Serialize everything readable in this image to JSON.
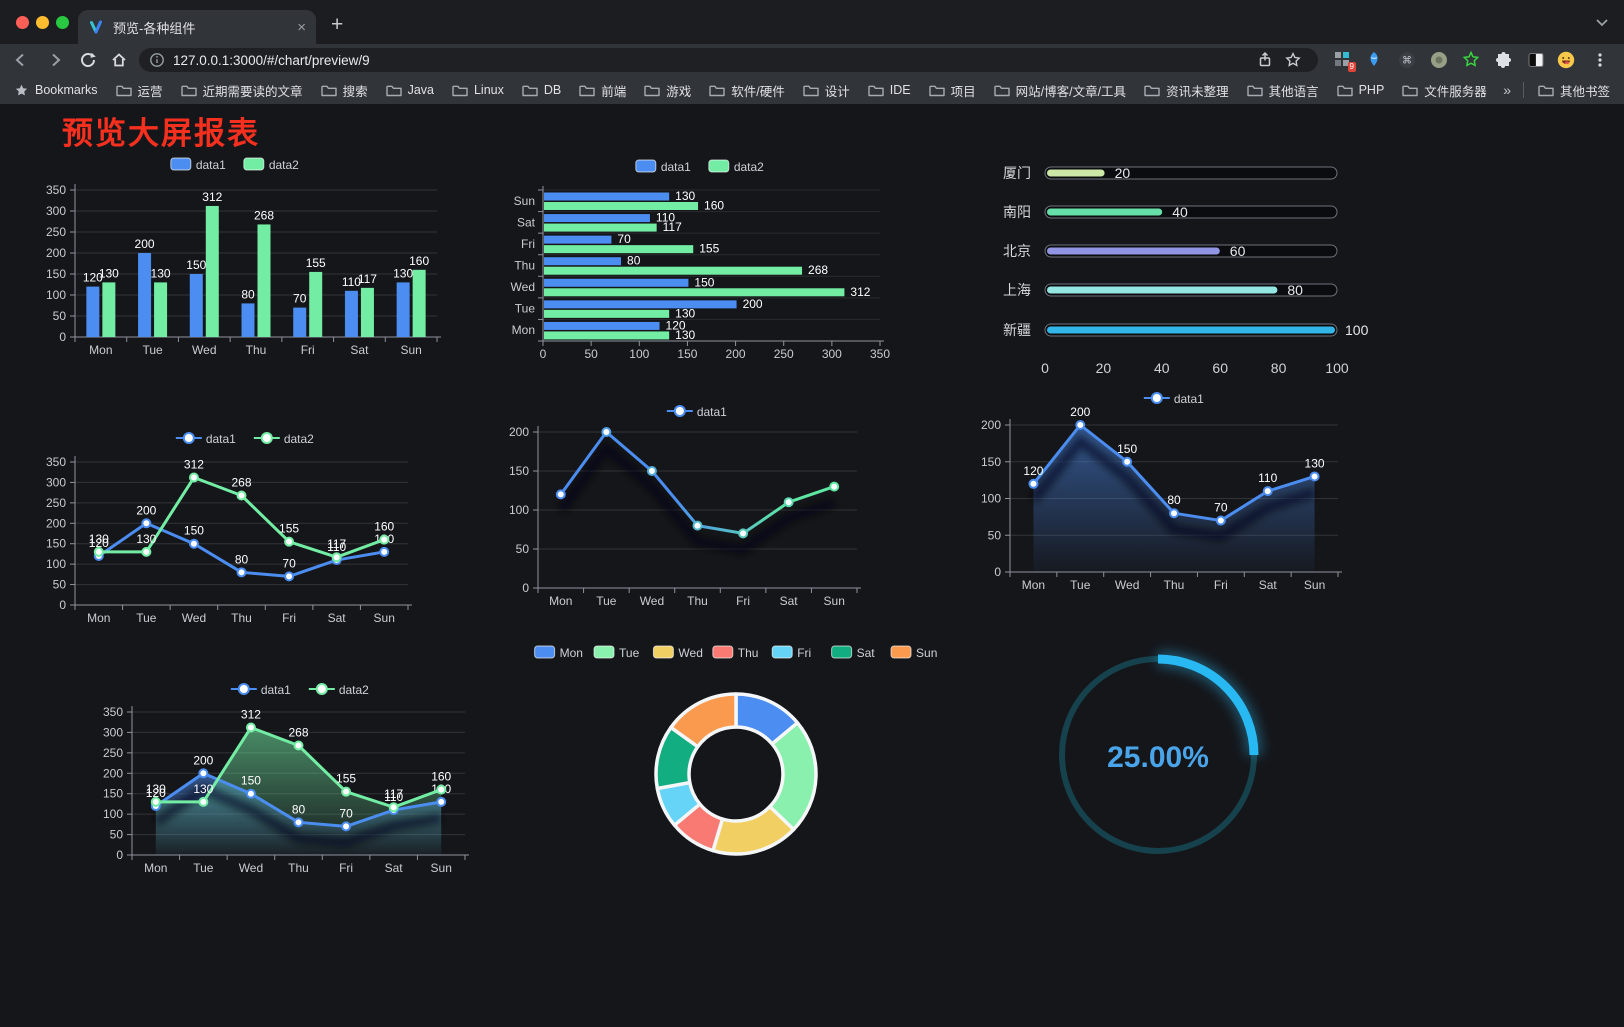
{
  "browser": {
    "tab": {
      "title": "预览-各种组件",
      "close": "×"
    },
    "new_tab_button": "+",
    "url": "127.0.0.1:3000/#/chart/preview/9",
    "bookmarks_bar": {
      "root_label": "Bookmarks",
      "folders": [
        "运营",
        "近期需要读的文章",
        "搜索",
        "Java",
        "Linux",
        "DB",
        "前端",
        "游戏",
        "软件/硬件",
        "设计",
        "IDE",
        "项目",
        "网站/博客/文章/工具",
        "资讯未整理",
        "其他语言",
        "PHP",
        "文件服务器"
      ],
      "overflow": "»",
      "other_bookmarks": "其他书签"
    },
    "extensions_badge": "9"
  },
  "page": {
    "title": "预览大屏报表",
    "title_color": "#f6301f"
  },
  "chart_data": [
    {
      "id": "bar-vertical",
      "type": "bar",
      "categories": [
        "Mon",
        "Tue",
        "Wed",
        "Thu",
        "Fri",
        "Sat",
        "Sun"
      ],
      "series": [
        {
          "name": "data1",
          "color": "#4b8df0",
          "values": [
            120,
            200,
            150,
            80,
            70,
            110,
            130
          ]
        },
        {
          "name": "data2",
          "color": "#73eda4",
          "values": [
            130,
            130,
            312,
            268,
            155,
            117,
            160
          ]
        }
      ],
      "ylim": [
        0,
        350
      ],
      "ystep": 50,
      "grid": true,
      "legend_position": "top"
    },
    {
      "id": "bar-horizontal",
      "type": "bar-horizontal",
      "categories": [
        "Mon",
        "Tue",
        "Wed",
        "Thu",
        "Fri",
        "Sat",
        "Sun"
      ],
      "series": [
        {
          "name": "data1",
          "color": "#4b8df0",
          "values": [
            120,
            200,
            150,
            80,
            70,
            110,
            130
          ]
        },
        {
          "name": "data2",
          "color": "#73eda4",
          "values": [
            130,
            130,
            312,
            268,
            155,
            117,
            160
          ]
        }
      ],
      "xlim": [
        0,
        350
      ],
      "xstep": 50,
      "grid": true,
      "legend_position": "top",
      "category_order_displayed": [
        "Sun",
        "Sat",
        "Fri",
        "Thu",
        "Wed",
        "Tue",
        "Mon"
      ]
    },
    {
      "id": "progress-bars",
      "type": "progress",
      "max": 100,
      "axis_ticks": [
        0,
        20,
        40,
        60,
        80,
        100
      ],
      "items": [
        {
          "label": "厦门",
          "value": 20,
          "color": "#cde8a6"
        },
        {
          "label": "南阳",
          "value": 40,
          "color": "#66dfa9"
        },
        {
          "label": "北京",
          "value": 60,
          "color": "#9295e3"
        },
        {
          "label": "上海",
          "value": 80,
          "color": "#93e6e2"
        },
        {
          "label": "新疆",
          "value": 100,
          "color": "#33b6e8"
        }
      ]
    },
    {
      "id": "line-dual",
      "type": "line",
      "categories": [
        "Mon",
        "Tue",
        "Wed",
        "Thu",
        "Fri",
        "Sat",
        "Sun"
      ],
      "series": [
        {
          "name": "data1",
          "color": "#4b8df0",
          "values": [
            120,
            200,
            150,
            80,
            70,
            110,
            130
          ]
        },
        {
          "name": "data2",
          "color": "#73eda4",
          "values": [
            130,
            130,
            312,
            268,
            155,
            117,
            160
          ]
        }
      ],
      "ylim": [
        0,
        350
      ],
      "ystep": 50,
      "labels": true,
      "legend_position": "top"
    },
    {
      "id": "line-gradient",
      "type": "line",
      "categories": [
        "Mon",
        "Tue",
        "Wed",
        "Thu",
        "Fri",
        "Sat",
        "Sun"
      ],
      "series": [
        {
          "name": "data1",
          "color": "#4b8df0",
          "color_end": "#5ee6a3",
          "values": [
            120,
            200,
            150,
            80,
            70,
            110,
            130
          ]
        }
      ],
      "ylim": [
        0,
        200
      ],
      "ystep": 50,
      "labels": false,
      "shadow": true,
      "legend_position": "top"
    },
    {
      "id": "area-single",
      "type": "line",
      "categories": [
        "Mon",
        "Tue",
        "Wed",
        "Thu",
        "Fri",
        "Sat",
        "Sun"
      ],
      "series": [
        {
          "name": "data1",
          "color": "#4b8df0",
          "values": [
            120,
            200,
            150,
            80,
            70,
            110,
            130
          ]
        }
      ],
      "ylim": [
        0,
        200
      ],
      "ystep": 50,
      "labels": true,
      "area": true,
      "shadow": true,
      "legend_position": "top"
    },
    {
      "id": "area-dual",
      "type": "line",
      "categories": [
        "Mon",
        "Tue",
        "Wed",
        "Thu",
        "Fri",
        "Sat",
        "Sun"
      ],
      "series": [
        {
          "name": "data1",
          "color": "#4b8df0",
          "values": [
            120,
            200,
            150,
            80,
            70,
            110,
            130
          ]
        },
        {
          "name": "data2",
          "color": "#73eda4",
          "values": [
            130,
            130,
            312,
            268,
            155,
            117,
            160
          ]
        }
      ],
      "ylim": [
        0,
        350
      ],
      "ystep": 50,
      "labels": true,
      "area": true,
      "shadow": true,
      "legend_position": "top"
    },
    {
      "id": "donut",
      "type": "pie",
      "items": [
        {
          "name": "Mon",
          "value": 120,
          "color": "#4b8df0"
        },
        {
          "name": "Tue",
          "value": 200,
          "color": "#8af0ae"
        },
        {
          "name": "Wed",
          "value": 150,
          "color": "#f2cf63"
        },
        {
          "name": "Thu",
          "value": 80,
          "color": "#f87a72"
        },
        {
          "name": "Fri",
          "value": 70,
          "color": "#66d4f7"
        },
        {
          "name": "Sat",
          "value": 110,
          "color": "#12ad80"
        },
        {
          "name": "Sun",
          "value": 130,
          "color": "#f99a4e"
        }
      ],
      "legend_position": "top"
    },
    {
      "id": "gauge",
      "type": "gauge",
      "value": 25,
      "label": "25.00%",
      "color": "#29b9f2",
      "track_color": "#16424d",
      "text_color": "#4aa4e9"
    }
  ]
}
